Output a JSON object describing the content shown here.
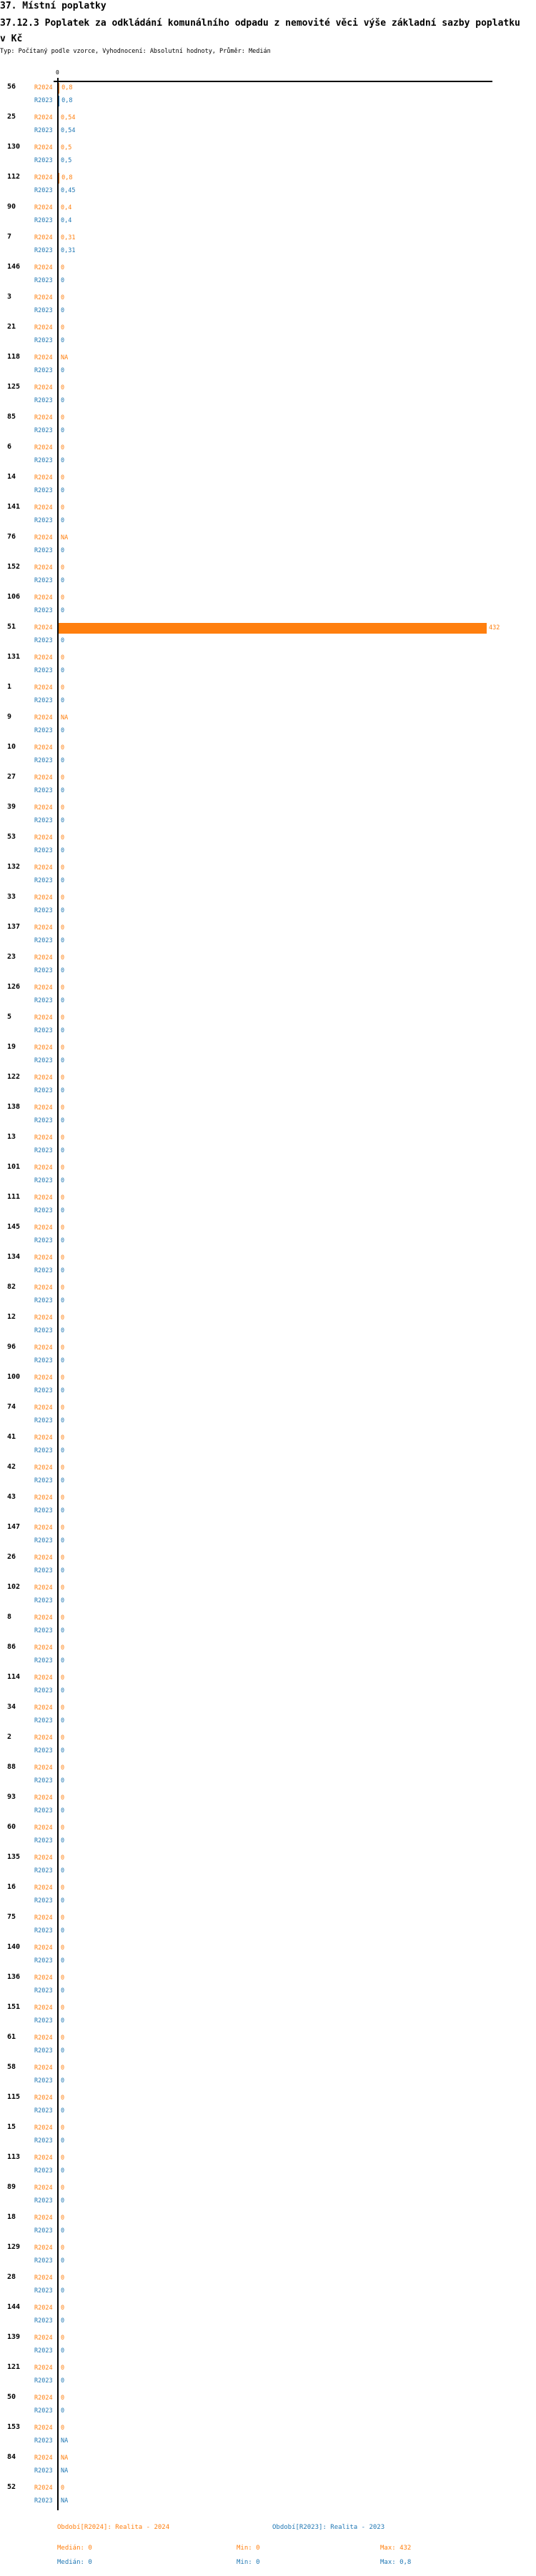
{
  "header": {
    "section": "37. Místní poplatky",
    "title": "37.12.3 Poplatek za odkládání komunálního odpadu z nemovité věci   výše základní sazby poplatku v Kč",
    "subtitle": "Typ: Počítaný podle vzorce, Vyhodnocení: Absolutní hodnoty, Průměr: Medián"
  },
  "colors": {
    "R2024": "#ff7f0e",
    "R2023": "#1f77b4"
  },
  "chart_data": {
    "type": "bar",
    "orientation": "horizontal",
    "x_tick_labels": [
      "0"
    ],
    "xlim": [
      0,
      432
    ],
    "series_labels": [
      "R2024",
      "R2023"
    ],
    "categories": [
      "56",
      "25",
      "130",
      "112",
      "90",
      "7",
      "146",
      "3",
      "21",
      "118",
      "125",
      "85",
      "6",
      "14",
      "141",
      "76",
      "152",
      "106",
      "51",
      "131",
      "1",
      "9",
      "10",
      "27",
      "39",
      "53",
      "132",
      "33",
      "137",
      "23",
      "126",
      "5",
      "19",
      "122",
      "138",
      "13",
      "101",
      "111",
      "145",
      "134",
      "82",
      "12",
      "96",
      "100",
      "74",
      "41",
      "42",
      "43",
      "147",
      "26",
      "102",
      "8",
      "86",
      "114",
      "34",
      "2",
      "88",
      "93",
      "60",
      "135",
      "16",
      "75",
      "140",
      "136",
      "151",
      "61",
      "58",
      "115",
      "15",
      "113",
      "89",
      "18",
      "129",
      "28",
      "144",
      "139",
      "121",
      "50",
      "153",
      "84",
      "52"
    ],
    "series": [
      {
        "name": "R2024",
        "values": [
          "0,8",
          "0,54",
          "0,5",
          "0,8",
          "0,4",
          "0,31",
          "0",
          "0",
          "0",
          "NA",
          "0",
          "0",
          "0",
          "0",
          "0",
          "NA",
          "0",
          "0",
          "432",
          "0",
          "0",
          "NA",
          "0",
          "0",
          "0",
          "0",
          "0",
          "0",
          "0",
          "0",
          "0",
          "0",
          "0",
          "0",
          "0",
          "0",
          "0",
          "0",
          "0",
          "0",
          "0",
          "0",
          "0",
          "0",
          "0",
          "0",
          "0",
          "0",
          "0",
          "0",
          "0",
          "0",
          "0",
          "0",
          "0",
          "0",
          "0",
          "0",
          "0",
          "0",
          "0",
          "0",
          "0",
          "0",
          "0",
          "0",
          "0",
          "0",
          "0",
          "0",
          "0",
          "0",
          "0",
          "0",
          "0",
          "0",
          "0",
          "0",
          "0",
          "NA",
          "0"
        ]
      },
      {
        "name": "R2023",
        "values": [
          "0,8",
          "0,54",
          "0,5",
          "0,45",
          "0,4",
          "0,31",
          "0",
          "0",
          "0",
          "0",
          "0",
          "0",
          "0",
          "0",
          "0",
          "0",
          "0",
          "0",
          "0",
          "0",
          "0",
          "0",
          "0",
          "0",
          "0",
          "0",
          "0",
          "0",
          "0",
          "0",
          "0",
          "0",
          "0",
          "0",
          "0",
          "0",
          "0",
          "0",
          "0",
          "0",
          "0",
          "0",
          "0",
          "0",
          "0",
          "0",
          "0",
          "0",
          "0",
          "0",
          "0",
          "0",
          "0",
          "0",
          "0",
          "0",
          "0",
          "0",
          "0",
          "0",
          "0",
          "0",
          "0",
          "0",
          "0",
          "0",
          "0",
          "0",
          "0",
          "0",
          "0",
          "0",
          "0",
          "0",
          "0",
          "0",
          "0",
          "0",
          "NA",
          "NA",
          "NA"
        ]
      }
    ]
  },
  "legend": {
    "r2024": "Období[R2024]: Realita - 2024",
    "r2023": "Období[R2023]: Realita - 2023",
    "stats2024": {
      "median": "Medián: 0",
      "min": "Min: 0",
      "max": "Max: 432"
    },
    "stats2023": {
      "median": "Medián: 0",
      "min": "Min: 0",
      "max": "Max: 0,8"
    }
  }
}
